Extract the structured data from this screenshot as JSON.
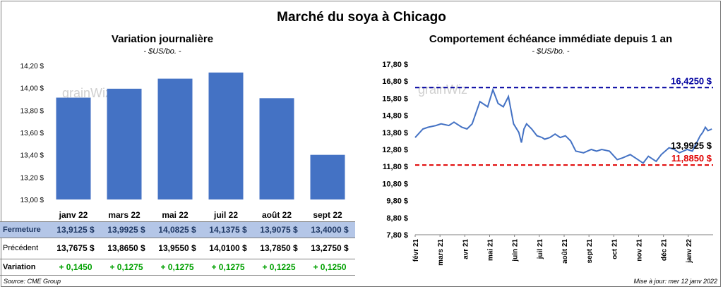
{
  "title": "Marché du soya à Chicago",
  "source": "Source: CME Group",
  "updated": "Mise à jour: mer 12 janv 2022",
  "watermark": "grainWiz",
  "table": {
    "row_labels": [
      "Fermeture",
      "Précédent",
      "Variation"
    ],
    "fermeture": [
      "13,9125  $",
      "13,9925  $",
      "14,0825  $",
      "14,1375  $",
      "13,9075  $",
      "13,4000  $"
    ],
    "precedent": [
      "13,7675  $",
      "13,8650  $",
      "13,9550  $",
      "14,0100  $",
      "13,7850  $",
      "13,2750  $"
    ],
    "variation": [
      "+ 0,1450",
      "+ 0,1275",
      "+ 0,1275",
      "+ 0,1275",
      "+ 0,1225",
      "+ 0,1250"
    ]
  },
  "chart_data": [
    {
      "type": "bar",
      "title": "Variation journalière",
      "subtitle": "- $US/bo. -",
      "categories": [
        "janv 22",
        "mars 22",
        "mai 22",
        "juil 22",
        "août 22",
        "sept 22"
      ],
      "values": [
        13.9125,
        13.9925,
        14.0825,
        14.1375,
        13.9075,
        13.4
      ],
      "ylim": [
        13.0,
        14.2
      ],
      "yticks": [
        13.0,
        13.2,
        13.4,
        13.6,
        13.8,
        14.0,
        14.2
      ],
      "ytick_labels": [
        "13,00 $",
        "13,20 $",
        "13,40 $",
        "13,60 $",
        "13,80 $",
        "14,00 $",
        "14,20 $"
      ],
      "color": "#4472c4",
      "grid": false
    },
    {
      "type": "line",
      "title": "Comportement  échéance immédiate depuis 1 an",
      "subtitle": "- $US/bo. -",
      "ylim": [
        7.8,
        17.8
      ],
      "yticks": [
        7.8,
        8.8,
        9.8,
        10.8,
        11.8,
        12.8,
        13.8,
        14.8,
        15.8,
        16.8,
        17.8
      ],
      "ytick_labels": [
        "7,80 $",
        "8,80 $",
        "9,80 $",
        "10,80 $",
        "11,80 $",
        "12,80 $",
        "13,80 $",
        "14,80 $",
        "15,80 $",
        "16,80 $",
        "17,80 $"
      ],
      "xtick_labels": [
        "févr 21",
        "mars 21",
        "avr 21",
        "mai 21",
        "juin 21",
        "juil 21",
        "août 21",
        "sept 21",
        "oct 21",
        "nov 21",
        "déc 21",
        "janv 22"
      ],
      "x": [
        0,
        0.3,
        0.5,
        0.8,
        1.0,
        1.3,
        1.5,
        1.8,
        2.0,
        2.2,
        2.5,
        2.8,
        3.0,
        3.2,
        3.4,
        3.6,
        3.8,
        4.0,
        4.1,
        4.2,
        4.3,
        4.5,
        4.7,
        4.9,
        5.0,
        5.2,
        5.4,
        5.6,
        5.8,
        6.0,
        6.2,
        6.5,
        6.8,
        7.0,
        7.2,
        7.5,
        7.8,
        8.0,
        8.3,
        8.5,
        8.8,
        9.0,
        9.3,
        9.5,
        9.8,
        10.0,
        10.2,
        10.5,
        10.7,
        10.9,
        11.0,
        11.1,
        11.2,
        11.3,
        11.45
      ],
      "y": [
        13.5,
        14.0,
        14.1,
        14.2,
        14.3,
        14.2,
        14.4,
        14.1,
        14.0,
        14.3,
        15.6,
        15.3,
        16.3,
        15.5,
        15.3,
        15.9,
        14.3,
        13.8,
        13.2,
        14.0,
        14.3,
        14.0,
        13.6,
        13.5,
        13.4,
        13.5,
        13.7,
        13.5,
        13.6,
        13.3,
        12.7,
        12.6,
        12.8,
        12.7,
        12.8,
        12.7,
        12.2,
        12.3,
        12.5,
        12.3,
        12.0,
        12.4,
        12.1,
        12.5,
        12.9,
        12.8,
        12.6,
        12.8,
        12.7,
        13.3,
        13.6,
        13.8,
        14.1,
        13.9,
        14.0
      ],
      "xlim": [
        0,
        11.5
      ],
      "color": "#4472c4",
      "hlines": [
        {
          "value": 16.425,
          "label": "16,4250 $",
          "color": "#0000a0"
        },
        {
          "value": 11.885,
          "label": "11,8850 $",
          "color": "#e00000"
        }
      ],
      "last_label": "13,9925 $",
      "grid": false
    }
  ]
}
